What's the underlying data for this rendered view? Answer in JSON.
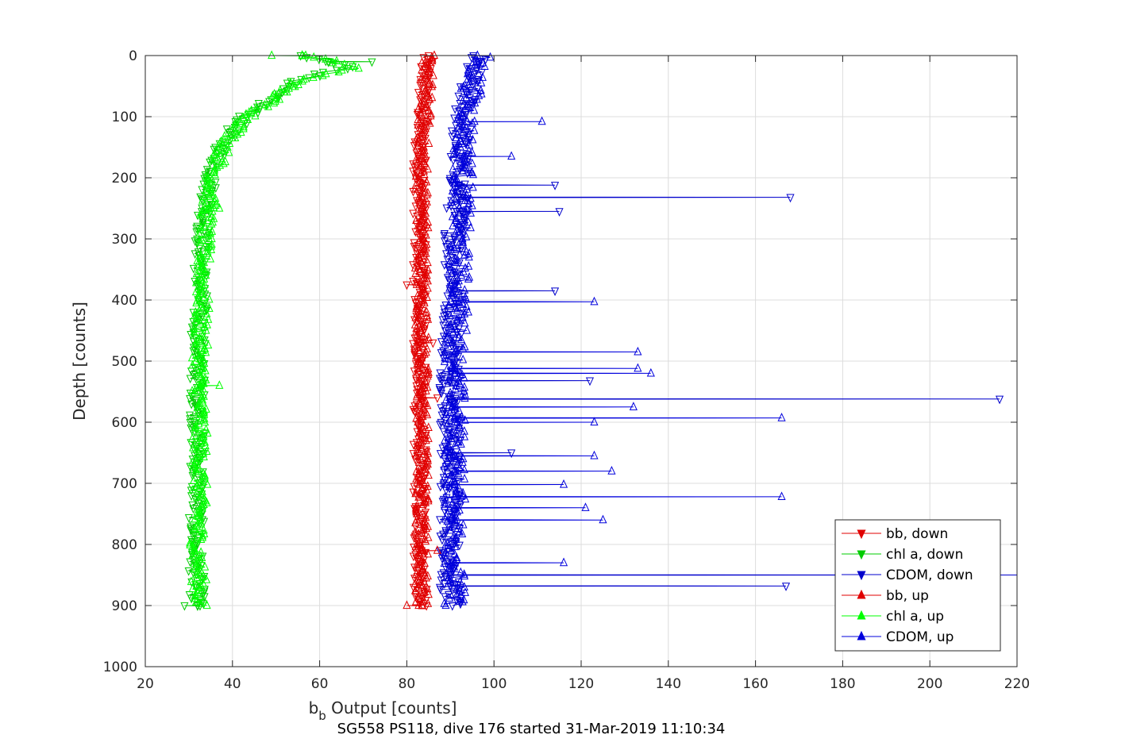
{
  "chart_data": {
    "type": "line",
    "xlabel_main": "b",
    "xlabel_sub": "b",
    "xlabel_rest": " Output [counts]",
    "ylabel": "Depth [counts]",
    "subtitle": "SG558 PS118, dive 176 started 31-Mar-2019 11:10:34",
    "xlim": [
      20,
      220
    ],
    "ylim": [
      0,
      1000
    ],
    "y_reversed": true,
    "grid": true,
    "legend_placement": "bottom-right",
    "x_ticks": [
      "20",
      "40",
      "60",
      "80",
      "100",
      "120",
      "140",
      "160",
      "180",
      "200",
      "220"
    ],
    "y_ticks": [
      "0",
      "100",
      "200",
      "300",
      "400",
      "500",
      "600",
      "700",
      "800",
      "900",
      "1000"
    ],
    "series": [
      {
        "name": "bb, down",
        "color": "#e00000",
        "marker": "triangle-down",
        "profile_depth": [
          0,
          50,
          100,
          150,
          200,
          300,
          400,
          500,
          600,
          700,
          800,
          900
        ],
        "profile_value": [
          84.5,
          84,
          83.5,
          83,
          83,
          83,
          83,
          83,
          83,
          83,
          83,
          83
        ],
        "spread": 1.6,
        "spikes": [
          [
            375,
            80
          ],
          [
            560,
            87
          ],
          [
            470,
            86
          ]
        ]
      },
      {
        "name": "chl a, down",
        "color": "#00cc00",
        "marker": "triangle-down",
        "profile_depth": [
          0,
          10,
          20,
          30,
          50,
          80,
          100,
          130,
          160,
          200,
          250,
          300,
          400,
          500,
          600,
          700,
          800,
          900
        ],
        "profile_value": [
          55,
          62,
          68,
          60,
          52,
          47,
          43,
          39,
          37,
          35,
          34,
          33,
          32.5,
          32,
          32,
          32,
          31.5,
          32
        ],
        "spread": 1.8,
        "spikes": [
          [
            10,
            72
          ],
          [
            900,
            29
          ]
        ]
      },
      {
        "name": "CDOM, down",
        "color": "#0000cc",
        "marker": "triangle-down",
        "profile_depth": [
          0,
          50,
          100,
          150,
          200,
          300,
          400,
          500,
          600,
          700,
          800,
          900
        ],
        "profile_value": [
          96,
          94,
          93,
          92,
          92,
          91,
          91,
          90,
          90,
          90,
          90,
          90
        ],
        "spread": 2.5,
        "spikes": [
          [
            232,
            168
          ],
          [
            562,
            216
          ],
          [
            850,
            222
          ],
          [
            868,
            167
          ],
          [
            212,
            114
          ],
          [
            255,
            115
          ],
          [
            385,
            114
          ],
          [
            532,
            122
          ],
          [
            650,
            104
          ]
        ]
      },
      {
        "name": "bb, up",
        "color": "#e00000",
        "marker": "triangle-up",
        "profile_depth": [
          0,
          50,
          100,
          150,
          200,
          300,
          400,
          500,
          600,
          700,
          800,
          900
        ],
        "profile_value": [
          85,
          84.5,
          84,
          83.5,
          83.5,
          83.5,
          83.5,
          83.5,
          83.5,
          83.5,
          83.5,
          83.5
        ],
        "spread": 1.6,
        "spikes": [
          [
            810,
            87
          ],
          [
            900,
            80
          ]
        ]
      },
      {
        "name": "chl a, up",
        "color": "#00ff00",
        "marker": "triangle-up",
        "profile_depth": [
          0,
          10,
          20,
          30,
          50,
          80,
          100,
          130,
          160,
          200,
          250,
          300,
          400,
          500,
          600,
          700,
          800,
          900
        ],
        "profile_value": [
          56,
          63,
          69,
          61,
          53,
          48,
          44,
          40,
          37.5,
          35.5,
          34.5,
          33.5,
          33,
          32.5,
          32.5,
          32.5,
          32,
          32.5
        ],
        "spread": 1.8,
        "spikes": [
          [
            0,
            49
          ],
          [
            540,
            37
          ],
          [
            250,
            37
          ]
        ]
      },
      {
        "name": "CDOM, up",
        "color": "#0000dd",
        "marker": "triangle-up",
        "profile_depth": [
          0,
          50,
          100,
          150,
          200,
          300,
          400,
          500,
          600,
          700,
          800,
          900
        ],
        "profile_value": [
          97,
          95,
          94,
          93,
          93,
          92,
          92,
          91,
          91,
          91,
          91,
          91
        ],
        "spread": 2.5,
        "spikes": [
          [
            108,
            111
          ],
          [
            165,
            104
          ],
          [
            403,
            123
          ],
          [
            485,
            133
          ],
          [
            520,
            136
          ],
          [
            512,
            133
          ],
          [
            593,
            166
          ],
          [
            575,
            132
          ],
          [
            722,
            166
          ],
          [
            655,
            123
          ],
          [
            680,
            127
          ],
          [
            600,
            123
          ],
          [
            702,
            116
          ],
          [
            740,
            121
          ],
          [
            760,
            125
          ],
          [
            830,
            116
          ]
        ]
      }
    ]
  }
}
